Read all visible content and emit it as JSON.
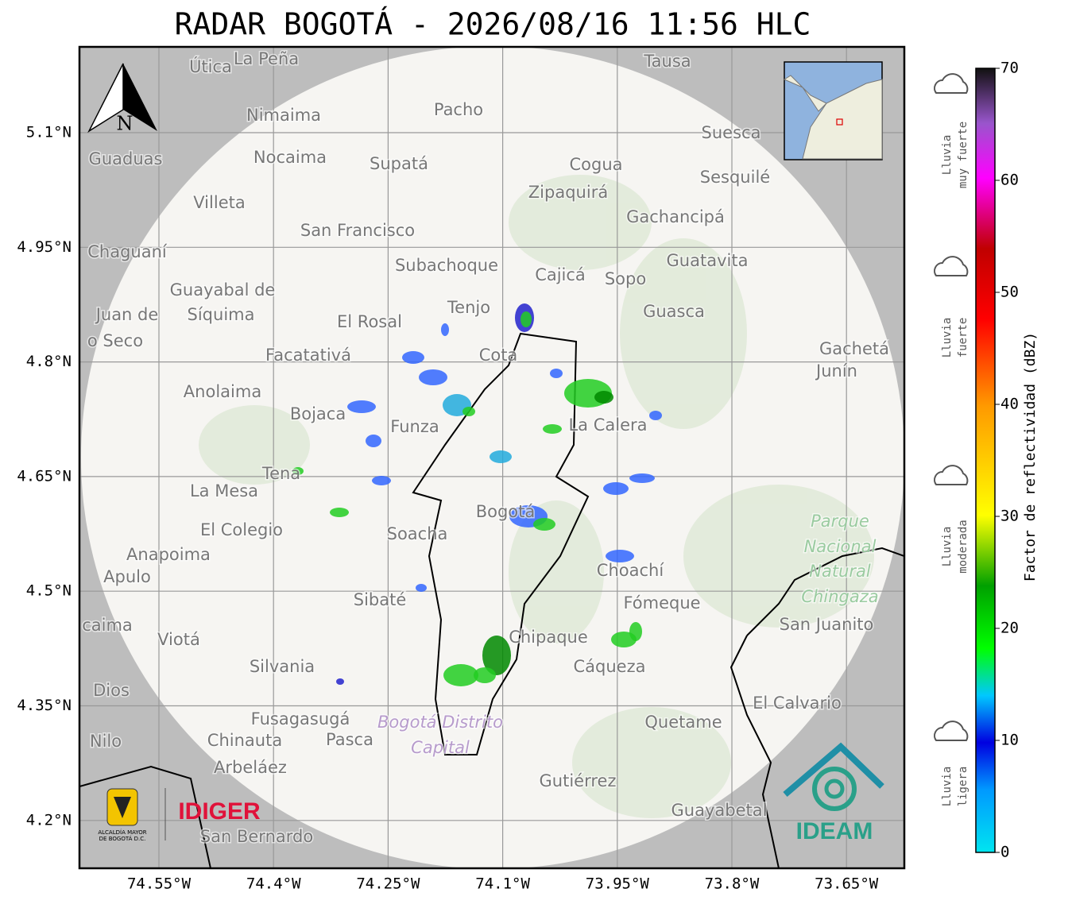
{
  "header": {
    "title": "RADAR BOGOTÁ - 2026/08/16 11:56 HLC"
  },
  "map": {
    "lat_labels": [
      "5.1°N",
      "4.95°N",
      "4.8°N",
      "4.65°N",
      "4.5°N",
      "4.35°N",
      "4.2°N"
    ],
    "lon_labels": [
      "74.55°W",
      "74.4°W",
      "74.25°W",
      "74.1°W",
      "73.95°W",
      "73.8°W",
      "73.65°W"
    ],
    "north": "N",
    "places": [
      "Útica",
      "La Peña",
      "Tausa",
      "Nimaima",
      "Pacho",
      "Guaduas",
      "Nocaima",
      "Supatá",
      "Cogua",
      "Suesca",
      "Sesquilé",
      "Villeta",
      "Zipaquirá",
      "Gachancipá",
      "San Francisco",
      "Chaguaní",
      "Subachoque",
      "Cajicá",
      "Sopo",
      "Guatavita",
      "Guayabal de",
      "Síquima",
      "Juan de",
      "o Seco",
      "Tenjo",
      "El Rosal",
      "Guasca",
      "Facatativá",
      "Cota",
      "Gachetá",
      "Junín",
      "Anolaima",
      "Bojaca",
      "Funza",
      "La Calera",
      "Tena",
      "La Mesa",
      "El Colegio",
      "Soacha",
      "Bogotá",
      "Anapoima",
      "Apulo",
      "Choachí",
      "Parque",
      "Nacional",
      "Natural",
      "Chingaza",
      "Sibaté",
      "Fómeque",
      "San Juanito",
      "caima",
      "Viotá",
      "Chipaque",
      "Silvania",
      "Cáqueza",
      "Dios",
      "El Calvario",
      "Fusagasugá",
      "Quetame",
      "Bogotá Distrito",
      "Capital",
      "Nilo",
      "Chinauta",
      "Pasca",
      "Arbeláez",
      "Gutiérrez",
      "Guayabetal",
      "San Bernardo"
    ]
  },
  "logos": {
    "alcaldia": [
      "ALCALDÍA MAYOR",
      "DE BOGOTÁ D.C."
    ],
    "idiger": "IDIGER",
    "ideam": "IDEAM"
  },
  "colorbar": {
    "label": "Factor de reflectividad (dBZ)",
    "lim": [
      0,
      70
    ],
    "ticks": [
      0,
      10,
      20,
      30,
      40,
      50,
      60,
      70
    ],
    "categories": [
      [
        "Lluvia",
        "muy fuerte"
      ],
      [
        "Lluvia",
        "fuerte"
      ],
      [
        "Lluvia",
        "moderada"
      ],
      [
        "Lluvia",
        "ligera"
      ]
    ]
  }
}
